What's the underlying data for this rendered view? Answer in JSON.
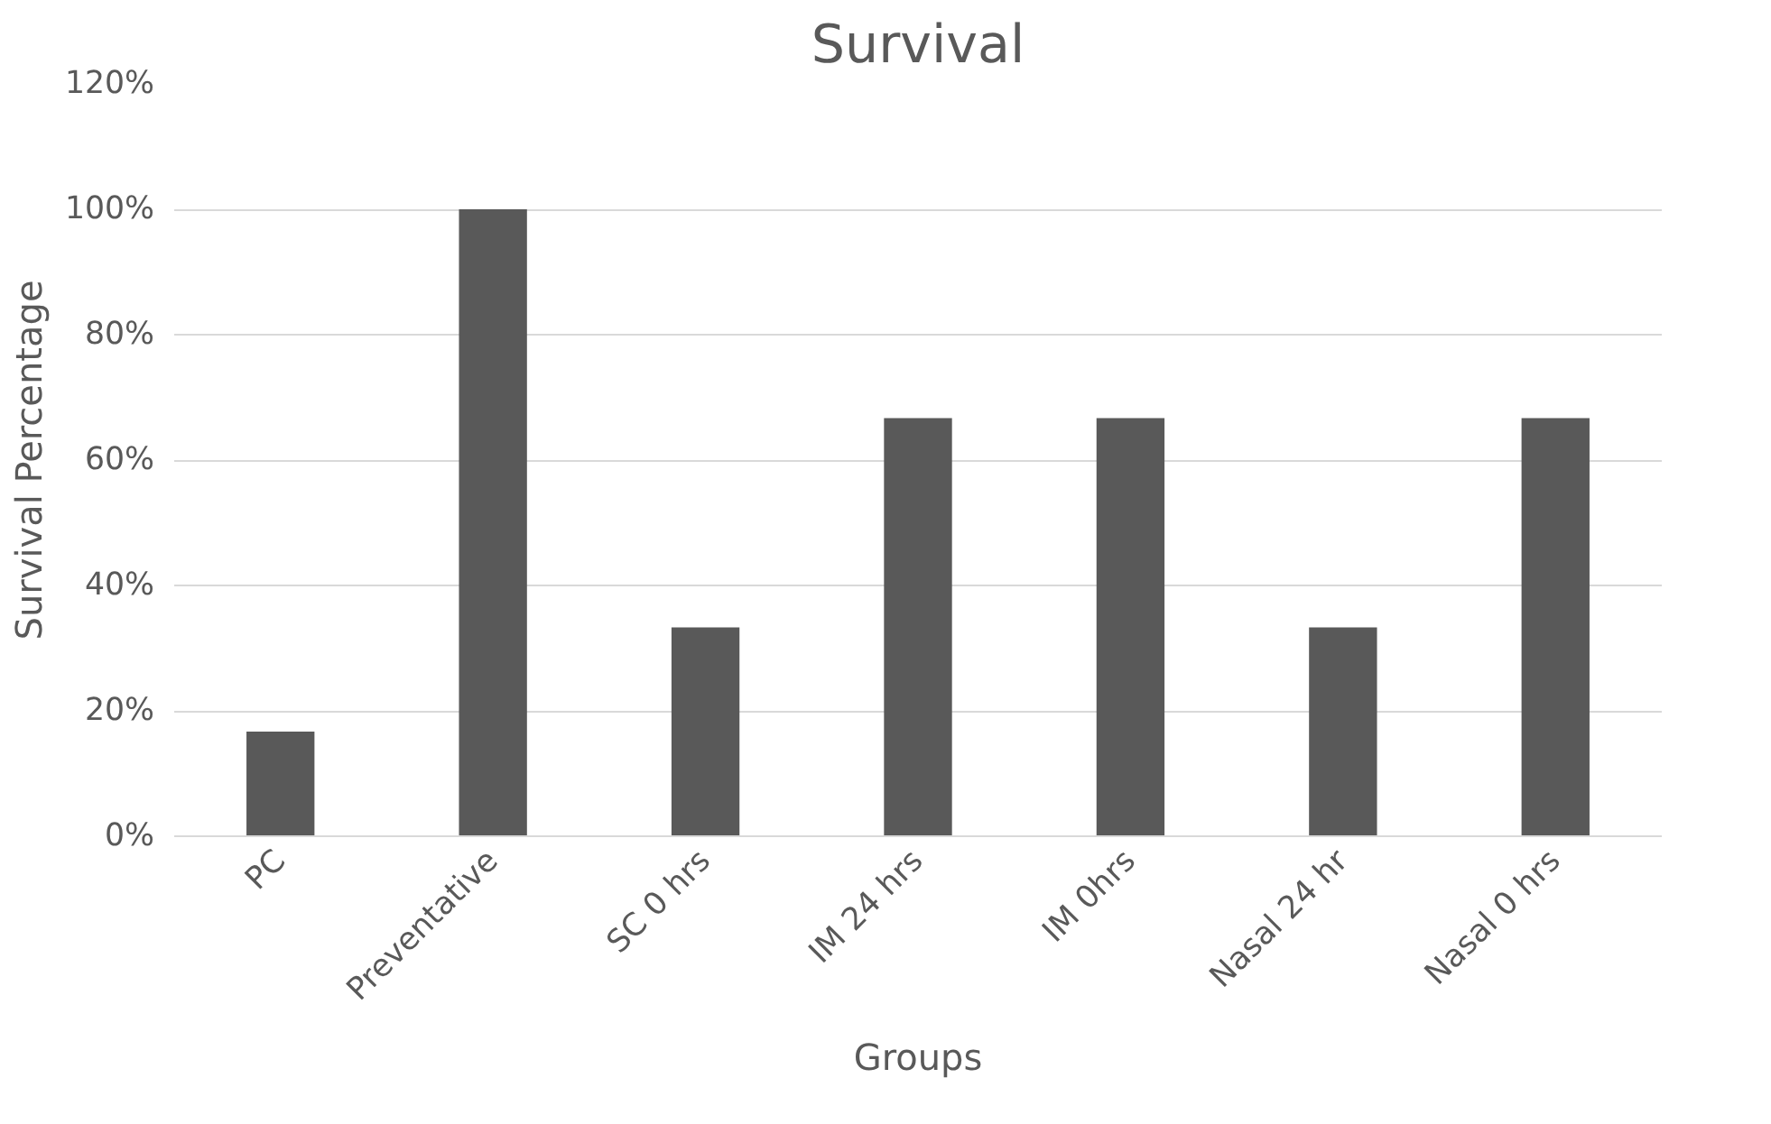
{
  "chart_data": {
    "type": "bar",
    "title": "Survival",
    "xlabel": "Groups",
    "ylabel": "Survival Percentage",
    "categories": [
      "PC",
      "Preventative",
      "SC 0 hrs",
      "IM 24 hrs",
      "IM 0hrs",
      "Nasal 24 hr",
      "Nasal 0 hrs"
    ],
    "values": [
      16.7,
      100,
      33.3,
      66.7,
      66.7,
      33.3,
      66.7
    ],
    "color": "#595959",
    "ylim": [
      0,
      120
    ],
    "yticks": [
      {
        "value": 0,
        "label": "0%"
      },
      {
        "value": 20,
        "label": "20%"
      },
      {
        "value": 40,
        "label": "40%"
      },
      {
        "value": 60,
        "label": "60%"
      },
      {
        "value": 80,
        "label": "80%"
      },
      {
        "value": 100,
        "label": "100%"
      },
      {
        "value": 120,
        "label": "120%"
      }
    ],
    "grid": "y"
  }
}
